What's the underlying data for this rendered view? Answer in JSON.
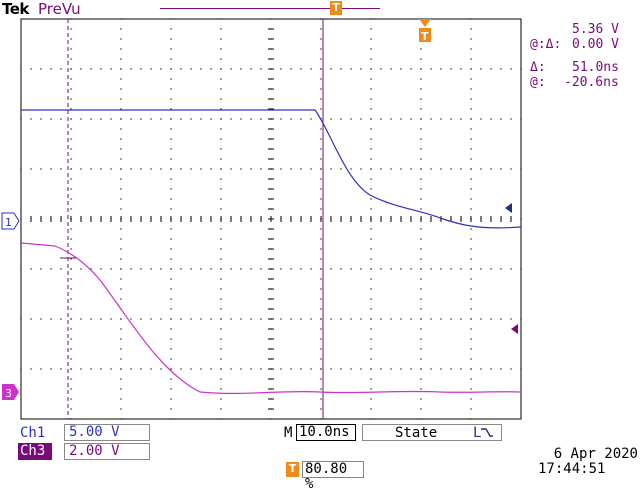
{
  "header": {
    "brand": "Tek",
    "mode": "PreVu",
    "record_marker": "T"
  },
  "trigger_marker": "T",
  "channels": [
    {
      "id": "1",
      "label": "Ch1",
      "scale": "5.00 V",
      "color": "#3030c0"
    },
    {
      "id": "3",
      "label": "Ch3",
      "scale": "2.00 V",
      "color": "#cc33cc"
    }
  ],
  "cursors": {
    "voltage_delta_symbol": "Δ:",
    "voltage_delta": "5.36 V",
    "voltage_at_symbol": "@:",
    "voltage_at": "0.00 V",
    "time_delta_symbol": "Δ:",
    "time_delta": "51.0ns",
    "time_at_symbol": "@:",
    "time_at": "-20.6ns"
  },
  "timebase": {
    "label": "M",
    "value": "10.0ns"
  },
  "trigger": {
    "state": "State",
    "level_icon": "L",
    "position": "80.80 %"
  },
  "datetime": {
    "date": "6 Apr 2020",
    "time": "17:44:51"
  },
  "colors": {
    "grid": "#000000",
    "cursor": "#7a0a7a",
    "ch1": "#3030c0",
    "ch3": "#cc33cc",
    "trigger": "#f08a1a"
  },
  "icons": [
    "ch1-ground-marker-icon",
    "ch3-ground-marker-icon",
    "ch1-trigger-arrow-icon",
    "ch3-trigger-arrow-icon",
    "trigger-position-icon"
  ]
}
